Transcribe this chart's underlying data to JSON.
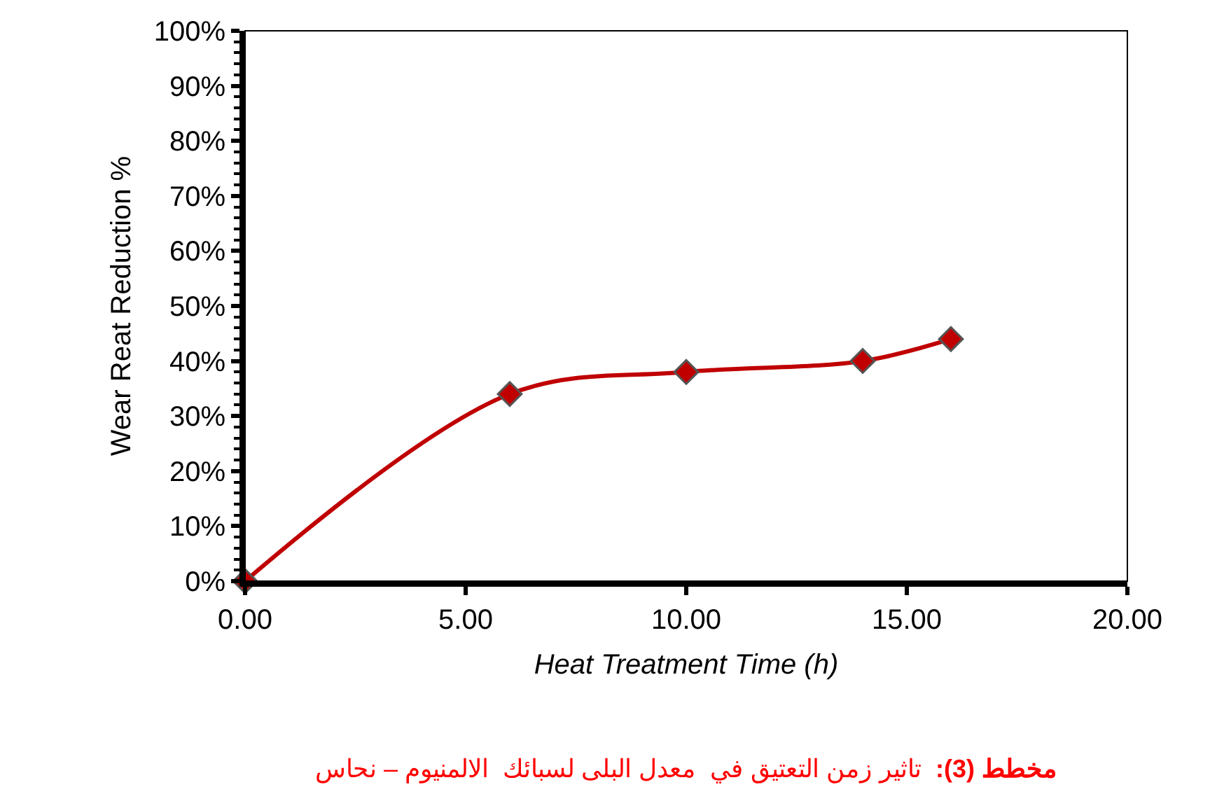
{
  "chart_data": {
    "type": "line",
    "xlabel": "Heat Treatment Time (h)",
    "ylabel": "Wear Reat Reduction %",
    "x": [
      0,
      6,
      10,
      14,
      16
    ],
    "series": [
      {
        "color": "#c00000",
        "values": [
          0,
          34,
          38,
          40,
          44
        ]
      }
    ],
    "marker": "diamond",
    "legend": false,
    "xlim": [
      0,
      20
    ],
    "xticks": [
      {
        "value": 0,
        "label": "0.00"
      },
      {
        "value": 5,
        "label": "5.00"
      },
      {
        "value": 10,
        "label": "10.00"
      },
      {
        "value": 15,
        "label": "15.00"
      },
      {
        "value": 20,
        "label": "20.00"
      }
    ],
    "ylim": [
      0,
      100
    ],
    "yticks": [
      {
        "value": 0,
        "label": "0%"
      },
      {
        "value": 10,
        "label": "10%"
      },
      {
        "value": 20,
        "label": "20%"
      },
      {
        "value": 30,
        "label": "30%"
      },
      {
        "value": 40,
        "label": "40%"
      },
      {
        "value": 50,
        "label": "50%"
      },
      {
        "value": 60,
        "label": "60%"
      },
      {
        "value": 70,
        "label": "70%"
      },
      {
        "value": 80,
        "label": "80%"
      },
      {
        "value": 90,
        "label": "90%"
      },
      {
        "value": 100,
        "label": "100%"
      }
    ],
    "annotations": [
      "مخطط (3):",
      "تاثير زمن التعتيق في  معدل البلى لسبائك  الالمنيوم – نحاس"
    ]
  }
}
